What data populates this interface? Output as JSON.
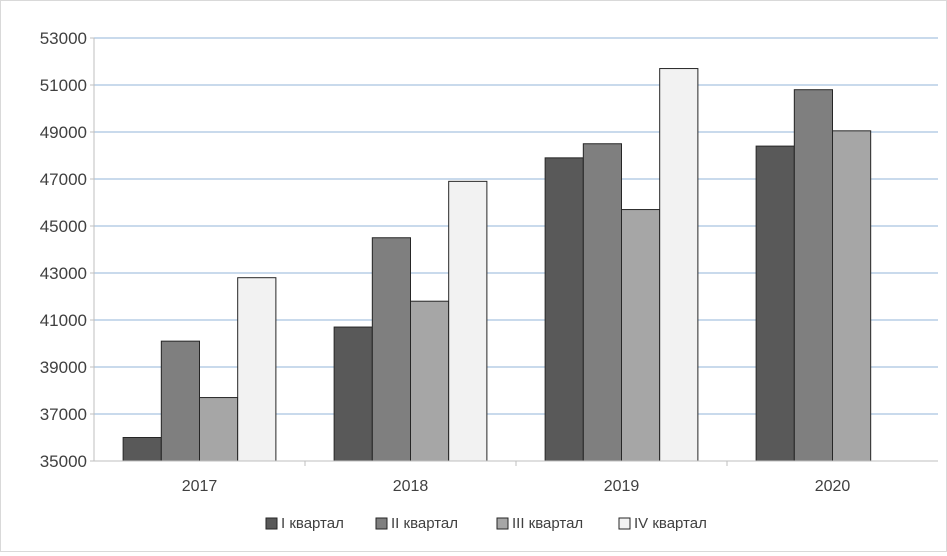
{
  "chart_data": {
    "type": "bar",
    "title": "",
    "xlabel": "",
    "ylabel": "",
    "categories": [
      "2017",
      "2018",
      "2019",
      "2020"
    ],
    "ylim": [
      35000,
      53000
    ],
    "yticks": [
      35000,
      37000,
      39000,
      41000,
      43000,
      45000,
      47000,
      49000,
      51000,
      53000
    ],
    "grid": true,
    "legend_position": "bottom",
    "series": [
      {
        "name": "I квартал",
        "color": "#595959",
        "values": [
          36000,
          40700,
          47900,
          48400
        ]
      },
      {
        "name": "II квартал",
        "color": "#7f7f7f",
        "values": [
          40100,
          44500,
          48500,
          50800
        ]
      },
      {
        "name": "III квартал",
        "color": "#a6a6a6",
        "values": [
          37700,
          41800,
          45700,
          49050
        ]
      },
      {
        "name": "IV квартал",
        "color": "#f2f2f2",
        "values": [
          42800,
          46900,
          51700,
          null
        ]
      }
    ]
  }
}
